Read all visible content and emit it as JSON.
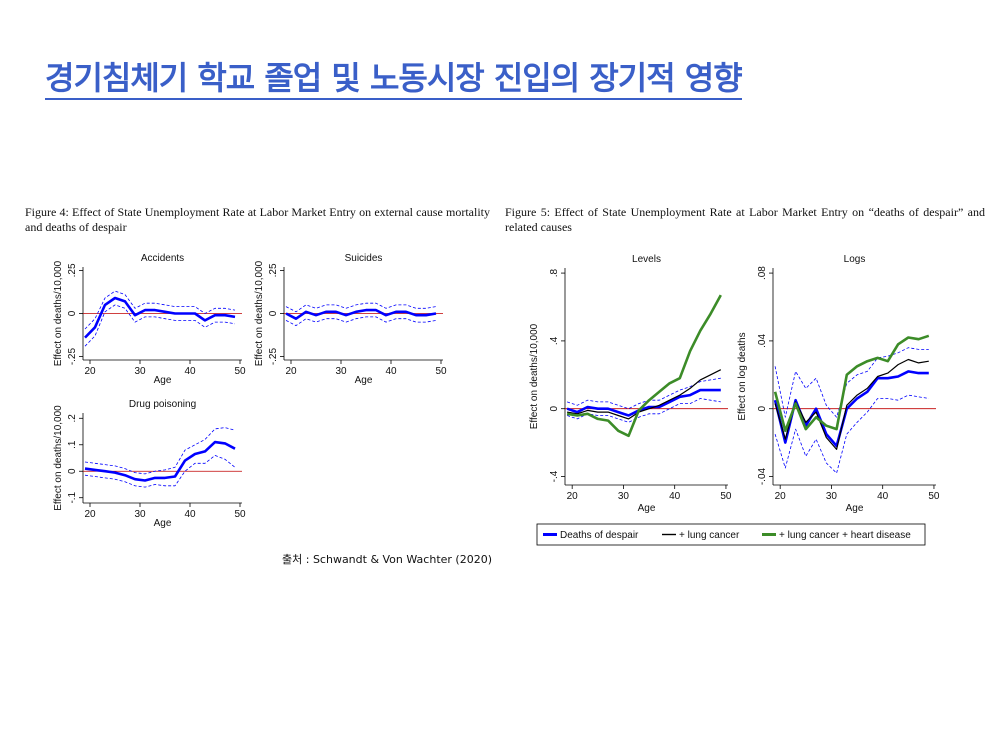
{
  "slide": {
    "title": "경기침체기 학교 졸업 및 노동시장 진입의 장기적 영향",
    "figure_captions": [
      "Figure 4:  Effect of State Unemployment Rate at Labor Market Entry on external cause mortality and deaths of despair",
      "Figure 5: Effect of State Unemployment Rate at Labor Market Entry on “deaths of despair” and related causes"
    ],
    "source": "출처 : Schwandt & Von Wachter (2020)"
  },
  "chart_data": [
    {
      "type": "line",
      "title": "Accidents",
      "x_label": "Age",
      "y_label": "Effect on deaths/10,000",
      "x": [
        19,
        21,
        23,
        25,
        27,
        29,
        31,
        33,
        35,
        37,
        39,
        41,
        43,
        45,
        47,
        49
      ],
      "xlim": [
        18.6,
        50.4
      ],
      "xticks": [
        20,
        30,
        40,
        50
      ],
      "ylim": [
        -0.27,
        0.27
      ],
      "yticks": [
        {
          "value": -0.25,
          "label": "-.25"
        },
        0,
        {
          "value": 0.25,
          "label": ".25"
        }
      ],
      "reference_line": 0,
      "reference_color": "#c00000",
      "series": [
        {
          "color": "#0000ff",
          "style": "solid",
          "values": [
            -0.14,
            -0.08,
            0.05,
            0.09,
            0.07,
            -0.01,
            0.02,
            0.02,
            0.01,
            0.0,
            0.0,
            0.0,
            -0.04,
            -0.01,
            -0.01,
            -0.02
          ]
        },
        {
          "color": "#0000ff",
          "style": "dashed",
          "values": [
            -0.09,
            -0.03,
            0.09,
            0.13,
            0.11,
            0.03,
            0.06,
            0.06,
            0.05,
            0.04,
            0.04,
            0.04,
            0.0,
            0.03,
            0.03,
            0.02
          ]
        },
        {
          "color": "#0000ff",
          "style": "dashed",
          "values": [
            -0.19,
            -0.13,
            0.01,
            0.05,
            0.03,
            -0.05,
            -0.02,
            -0.02,
            -0.03,
            -0.04,
            -0.04,
            -0.04,
            -0.08,
            -0.05,
            -0.05,
            -0.06
          ]
        }
      ]
    },
    {
      "type": "line",
      "title": "Suicides",
      "x_label": "Age",
      "y_label": "Effect on deaths/10,000",
      "x": [
        19,
        21,
        23,
        25,
        27,
        29,
        31,
        33,
        35,
        37,
        39,
        41,
        43,
        45,
        47,
        49
      ],
      "xlim": [
        18.6,
        50.4
      ],
      "xticks": [
        20,
        30,
        40,
        50
      ],
      "ylim": [
        -0.27,
        0.27
      ],
      "yticks": [
        {
          "value": -0.25,
          "label": "-.25"
        },
        0,
        {
          "value": 0.25,
          "label": ".25"
        }
      ],
      "reference_line": 0,
      "reference_color": "#c00000",
      "series": [
        {
          "color": "#0000ff",
          "style": "solid",
          "values": [
            0.0,
            -0.03,
            0.01,
            -0.01,
            0.01,
            0.01,
            -0.01,
            0.01,
            0.02,
            0.02,
            -0.01,
            0.01,
            0.01,
            -0.01,
            -0.01,
            0.0
          ]
        },
        {
          "color": "#0000ff",
          "style": "dashed",
          "values": [
            0.04,
            0.01,
            0.05,
            0.03,
            0.05,
            0.05,
            0.03,
            0.05,
            0.06,
            0.06,
            0.03,
            0.05,
            0.05,
            0.03,
            0.03,
            0.04
          ]
        },
        {
          "color": "#0000ff",
          "style": "dashed",
          "values": [
            -0.04,
            -0.07,
            -0.03,
            -0.05,
            -0.03,
            -0.03,
            -0.05,
            -0.03,
            -0.02,
            -0.02,
            -0.05,
            -0.03,
            -0.03,
            -0.05,
            -0.05,
            -0.04
          ]
        }
      ]
    },
    {
      "type": "line",
      "title": "Drug poisoning",
      "x_label": "Age",
      "y_label": "Effect on deaths/10,000",
      "x": [
        19,
        21,
        23,
        25,
        27,
        29,
        31,
        33,
        35,
        37,
        39,
        41,
        43,
        45,
        47,
        49
      ],
      "xlim": [
        18.6,
        50.4
      ],
      "xticks": [
        20,
        30,
        40,
        50
      ],
      "ylim": [
        -0.12,
        0.22
      ],
      "yticks": [
        {
          "value": -0.1,
          "label": "-.1"
        },
        0,
        {
          "value": 0.1,
          "label": ".1"
        },
        {
          "value": 0.2,
          "label": ".2"
        }
      ],
      "reference_line": 0,
      "reference_color": "#c00000",
      "series": [
        {
          "color": "#0000ff",
          "style": "solid",
          "values": [
            0.01,
            0.005,
            0.0,
            -0.005,
            -0.015,
            -0.03,
            -0.035,
            -0.025,
            -0.025,
            -0.02,
            0.04,
            0.065,
            0.075,
            0.11,
            0.105,
            0.085
          ]
        },
        {
          "color": "#0000ff",
          "style": "dashed",
          "values": [
            0.035,
            0.03,
            0.025,
            0.02,
            0.01,
            -0.005,
            -0.01,
            0.0,
            0.005,
            0.015,
            0.08,
            0.1,
            0.12,
            0.16,
            0.165,
            0.155
          ]
        },
        {
          "color": "#0000ff",
          "style": "dashed",
          "values": [
            -0.015,
            -0.02,
            -0.025,
            -0.03,
            -0.04,
            -0.055,
            -0.06,
            -0.05,
            -0.055,
            -0.055,
            0.0,
            0.03,
            0.03,
            0.06,
            0.045,
            0.015
          ]
        }
      ]
    },
    {
      "type": "line",
      "title": "Levels",
      "x_label": "Age",
      "y_label": "Effect on deaths/10,000",
      "x": [
        19,
        21,
        23,
        25,
        27,
        29,
        31,
        33,
        35,
        37,
        39,
        41,
        43,
        45,
        47,
        49
      ],
      "xlim": [
        18.6,
        50.4
      ],
      "xticks": [
        20,
        30,
        40,
        50
      ],
      "ylim": [
        -0.45,
        0.83
      ],
      "yticks": [
        {
          "value": -0.4,
          "label": "-.4"
        },
        0,
        {
          "value": 0.4,
          "label": ".4"
        },
        {
          "value": 0.8,
          "label": ".8"
        }
      ],
      "reference_line": 0,
      "reference_color": "#c00000",
      "series": [
        {
          "color": "#0000ff",
          "style": "dashed",
          "values": [
            0.04,
            0.02,
            0.05,
            0.04,
            0.04,
            0.02,
            0.0,
            0.03,
            0.05,
            0.05,
            0.08,
            0.11,
            0.13,
            0.16,
            0.17,
            0.18
          ]
        },
        {
          "color": "#0000ff",
          "style": "dashed",
          "values": [
            -0.04,
            -0.06,
            -0.03,
            -0.04,
            -0.04,
            -0.06,
            -0.08,
            -0.05,
            -0.03,
            -0.03,
            0.0,
            0.03,
            0.03,
            0.06,
            0.05,
            0.04
          ]
        },
        {
          "name": "Deaths of despair",
          "color": "#0000ff",
          "style": "solid",
          "values": [
            0.0,
            -0.02,
            0.01,
            0.0,
            0.0,
            -0.02,
            -0.04,
            -0.01,
            0.01,
            0.01,
            0.04,
            0.07,
            0.08,
            0.11,
            0.11,
            0.11
          ]
        },
        {
          "name": "+ lung cancer",
          "color": "#000000",
          "style": "thin",
          "values": [
            -0.02,
            -0.03,
            -0.01,
            -0.02,
            -0.02,
            -0.04,
            -0.06,
            -0.02,
            0.0,
            0.02,
            0.05,
            0.08,
            0.12,
            0.17,
            0.2,
            0.23
          ]
        },
        {
          "name": "+ lung cancer + heart disease",
          "color": "#3c8c28",
          "style": "solid",
          "values": [
            -0.03,
            -0.04,
            -0.03,
            -0.06,
            -0.07,
            -0.13,
            -0.16,
            -0.01,
            0.05,
            0.1,
            0.15,
            0.18,
            0.34,
            0.46,
            0.56,
            0.67
          ]
        }
      ]
    },
    {
      "type": "line",
      "title": "Logs",
      "x_label": "Age",
      "y_label": "Effect on log deaths",
      "x": [
        19,
        21,
        23,
        25,
        27,
        29,
        31,
        33,
        35,
        37,
        39,
        41,
        43,
        45,
        47,
        49
      ],
      "xlim": [
        18.6,
        50.4
      ],
      "xticks": [
        20,
        30,
        40,
        50
      ],
      "ylim": [
        -0.045,
        0.083
      ],
      "yticks": [
        {
          "value": -0.04,
          "label": "-.04"
        },
        0,
        {
          "value": 0.04,
          "label": ".04"
        },
        {
          "value": 0.08,
          "label": ".08"
        }
      ],
      "reference_line": 0,
      "reference_color": "#c00000",
      "series": [
        {
          "color": "#0000ff",
          "style": "dashed",
          "values": [
            0.025,
            -0.005,
            0.022,
            0.012,
            0.018,
            0.002,
            -0.005,
            0.015,
            0.02,
            0.022,
            0.03,
            0.031,
            0.033,
            0.036,
            0.035,
            0.035
          ]
        },
        {
          "color": "#0000ff",
          "style": "dashed",
          "values": [
            -0.015,
            -0.035,
            -0.012,
            -0.028,
            -0.018,
            -0.032,
            -0.038,
            -0.015,
            -0.008,
            -0.002,
            0.006,
            0.006,
            0.005,
            0.008,
            0.007,
            0.006
          ]
        },
        {
          "color": "#0000ff",
          "style": "solid",
          "values": [
            0.005,
            -0.02,
            0.005,
            -0.01,
            0.0,
            -0.015,
            -0.022,
            0.0,
            0.006,
            0.01,
            0.018,
            0.018,
            0.019,
            0.022,
            0.021,
            0.021
          ]
        },
        {
          "color": "#000000",
          "style": "thin",
          "values": [
            0.003,
            -0.018,
            0.004,
            -0.008,
            -0.002,
            -0.017,
            -0.024,
            0.002,
            0.008,
            0.012,
            0.019,
            0.021,
            0.026,
            0.029,
            0.027,
            0.028
          ]
        },
        {
          "color": "#3c8c28",
          "style": "solid",
          "values": [
            0.01,
            -0.013,
            0.003,
            -0.012,
            -0.005,
            -0.01,
            -0.012,
            0.02,
            0.025,
            0.028,
            0.03,
            0.028,
            0.038,
            0.042,
            0.041,
            0.043
          ]
        }
      ]
    }
  ]
}
